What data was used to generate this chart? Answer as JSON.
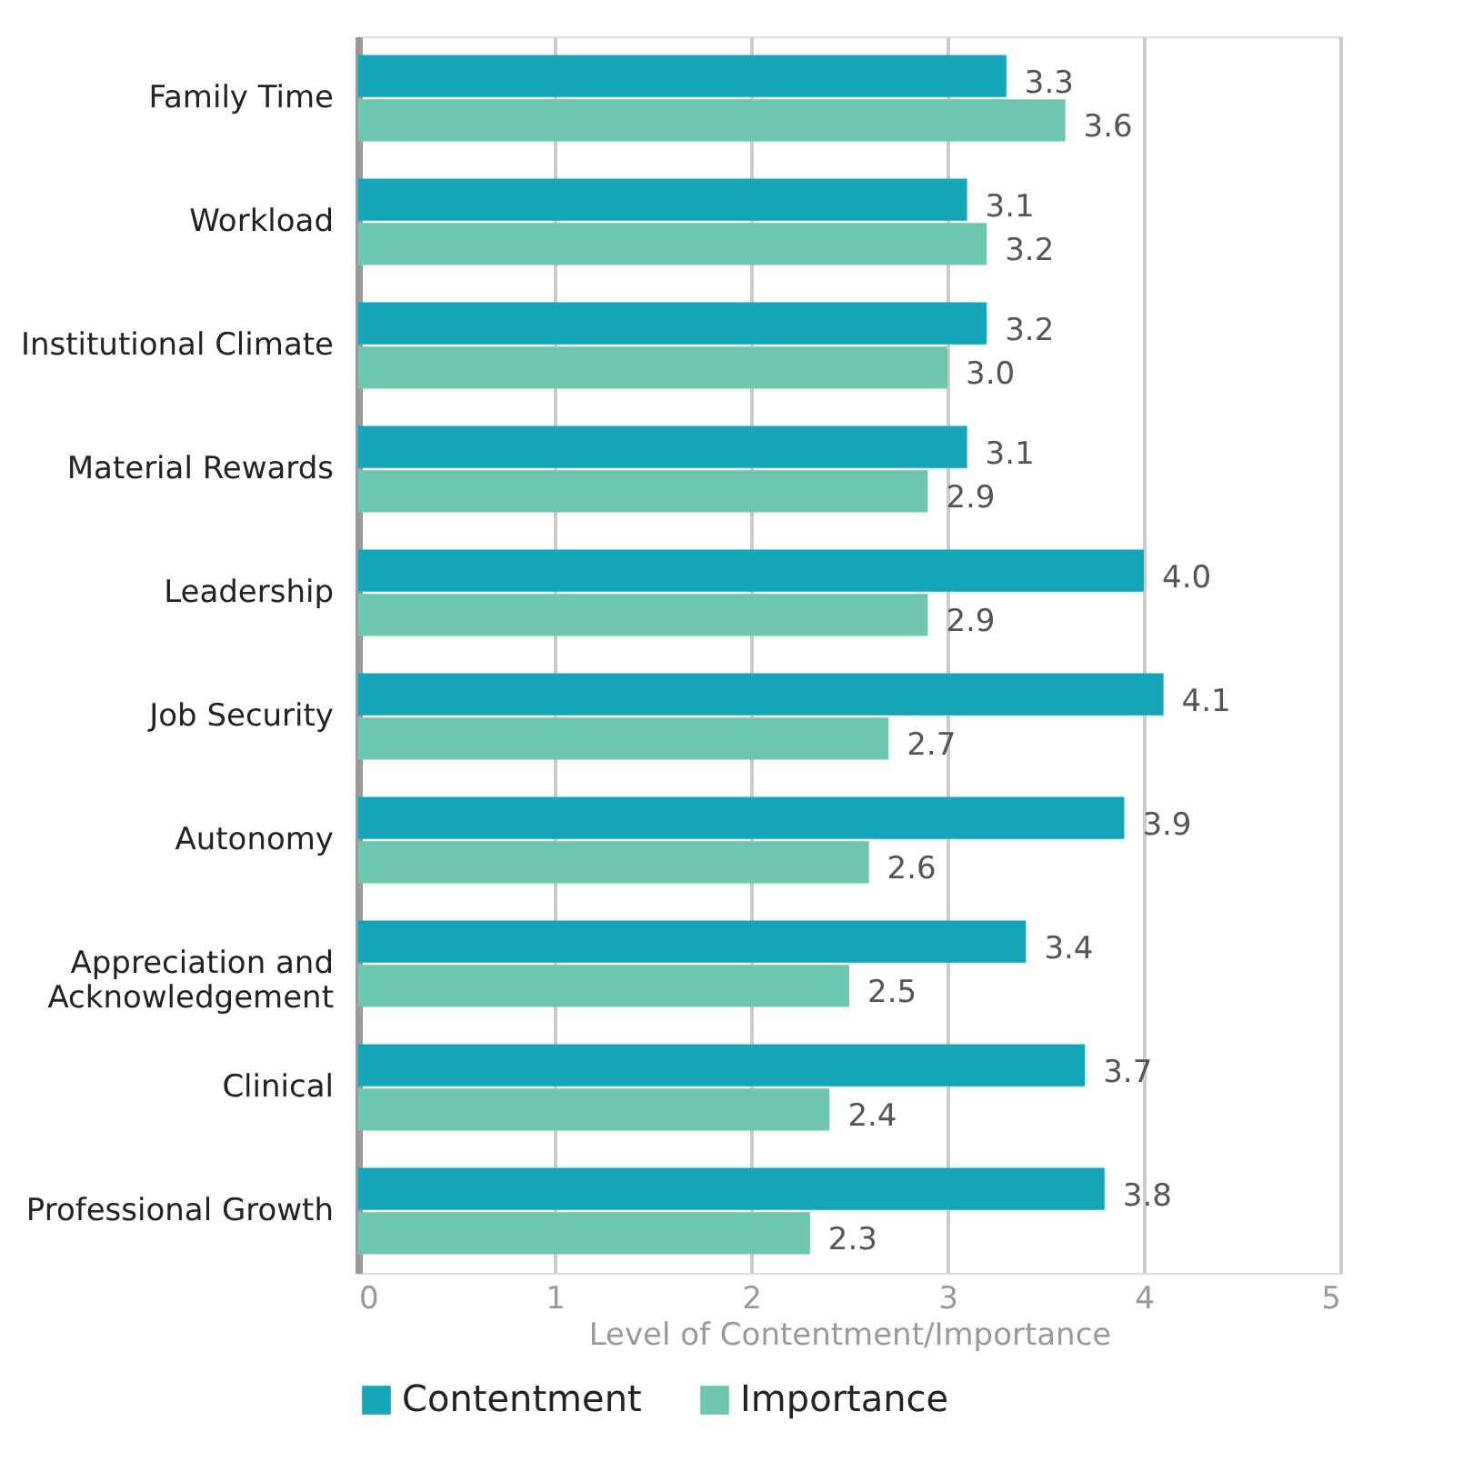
{
  "chart_data": {
    "type": "bar",
    "orientation": "horizontal",
    "xlabel": "Level of Contentment/Importance",
    "categories": [
      "Family Time",
      "Workload",
      "Institutional Climate",
      "Material Rewards",
      "Leadership",
      "Job Security",
      "Autonomy",
      "Appreciation and Acknowledgement",
      "Clinical",
      "Professional Growth"
    ],
    "series": [
      {
        "name": "Contentment",
        "color": "#14a5b8",
        "values": [
          3.3,
          3.1,
          3.2,
          3.1,
          4.0,
          4.1,
          3.9,
          3.4,
          3.7,
          3.8
        ],
        "value_labels": [
          "3.3",
          "3.1",
          "3.2",
          "3.1",
          "4.0",
          "4.1",
          "3.9",
          "3.4",
          "3.7",
          "3.8"
        ]
      },
      {
        "name": "Importance",
        "color": "#6ec6b0",
        "values": [
          3.6,
          3.2,
          3.0,
          2.9,
          2.9,
          2.7,
          2.6,
          2.5,
          2.4,
          2.3
        ],
        "value_labels": [
          "3.6",
          "3.2",
          "3.0",
          "2.9",
          "2.9",
          "2.7",
          "2.6",
          "2.5",
          "2.4",
          "2.3"
        ]
      }
    ],
    "xlim": [
      0,
      5
    ],
    "xticks": [
      0,
      1,
      2,
      3,
      4,
      5
    ],
    "grid": "x",
    "legend": "bottom"
  }
}
